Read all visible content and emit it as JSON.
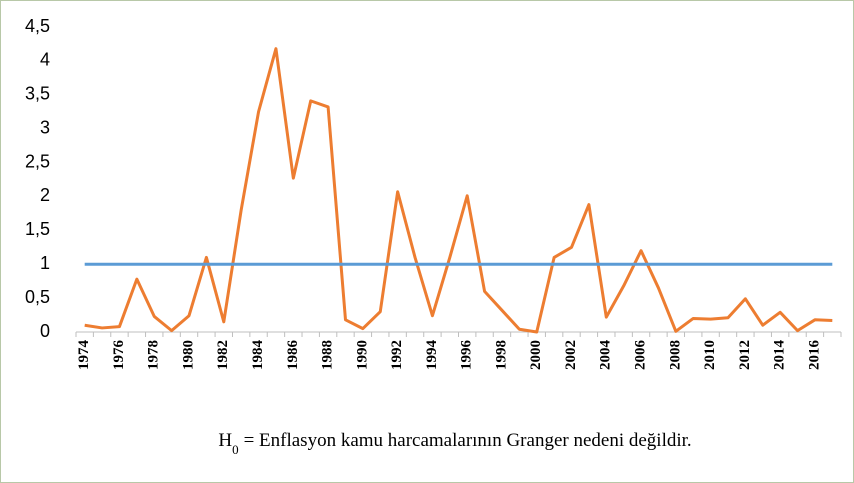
{
  "chart_data": {
    "type": "line",
    "categories": [
      "1974",
      null,
      "1976",
      null,
      "1978",
      null,
      "1980",
      null,
      "1982",
      null,
      "1984",
      null,
      "1986",
      null,
      "1988",
      null,
      "1990",
      null,
      "1992",
      null,
      "1994",
      null,
      "1996",
      null,
      "1998",
      null,
      "2000",
      null,
      "2002",
      null,
      "2004",
      null,
      "2006",
      null,
      "2008",
      null,
      "2010",
      null,
      "2012",
      null,
      "2014",
      null,
      "2016",
      null
    ],
    "series": [
      {
        "color": "#ed7d31",
        "values": [
          0.1,
          0.06,
          0.08,
          0.78,
          0.23,
          0.02,
          0.24,
          1.1,
          0.15,
          1.8,
          3.25,
          4.18,
          2.27,
          3.41,
          3.32,
          0.18,
          0.05,
          0.3,
          2.07,
          1.1,
          0.24,
          1.1,
          2.01,
          0.6,
          0.32,
          0.04,
          0.0,
          1.1,
          1.25,
          1.88,
          0.22,
          0.68,
          1.2,
          0.65,
          0.01,
          0.2,
          0.19,
          0.21,
          0.49,
          0.1,
          0.29,
          0.02,
          0.18,
          0.17
        ]
      },
      {
        "color": "#5b9bd5",
        "values": [
          1,
          1,
          1,
          1,
          1,
          1,
          1,
          1,
          1,
          1,
          1,
          1,
          1,
          1,
          1,
          1,
          1,
          1,
          1,
          1,
          1,
          1,
          1,
          1,
          1,
          1,
          1,
          1,
          1,
          1,
          1,
          1,
          1,
          1,
          1,
          1,
          1,
          1,
          1,
          1,
          1,
          1,
          1,
          1
        ]
      }
    ],
    "ylim": [
      0,
      4.5
    ],
    "yticks": [
      0,
      {
        "value": 0.5,
        "label": "0,5"
      },
      1,
      {
        "value": 1.5,
        "label": "1,5"
      },
      2,
      {
        "value": 2.5,
        "label": "2,5"
      },
      3,
      {
        "value": 3.5,
        "label": "3,5"
      },
      4,
      {
        "value": 4.5,
        "label": "4,5"
      }
    ],
    "grid": false,
    "caption": {
      "symbol": "H",
      "subscript": "0",
      "text": "= Enflasyon kamu harcamalarının Granger nedeni değildir."
    }
  }
}
